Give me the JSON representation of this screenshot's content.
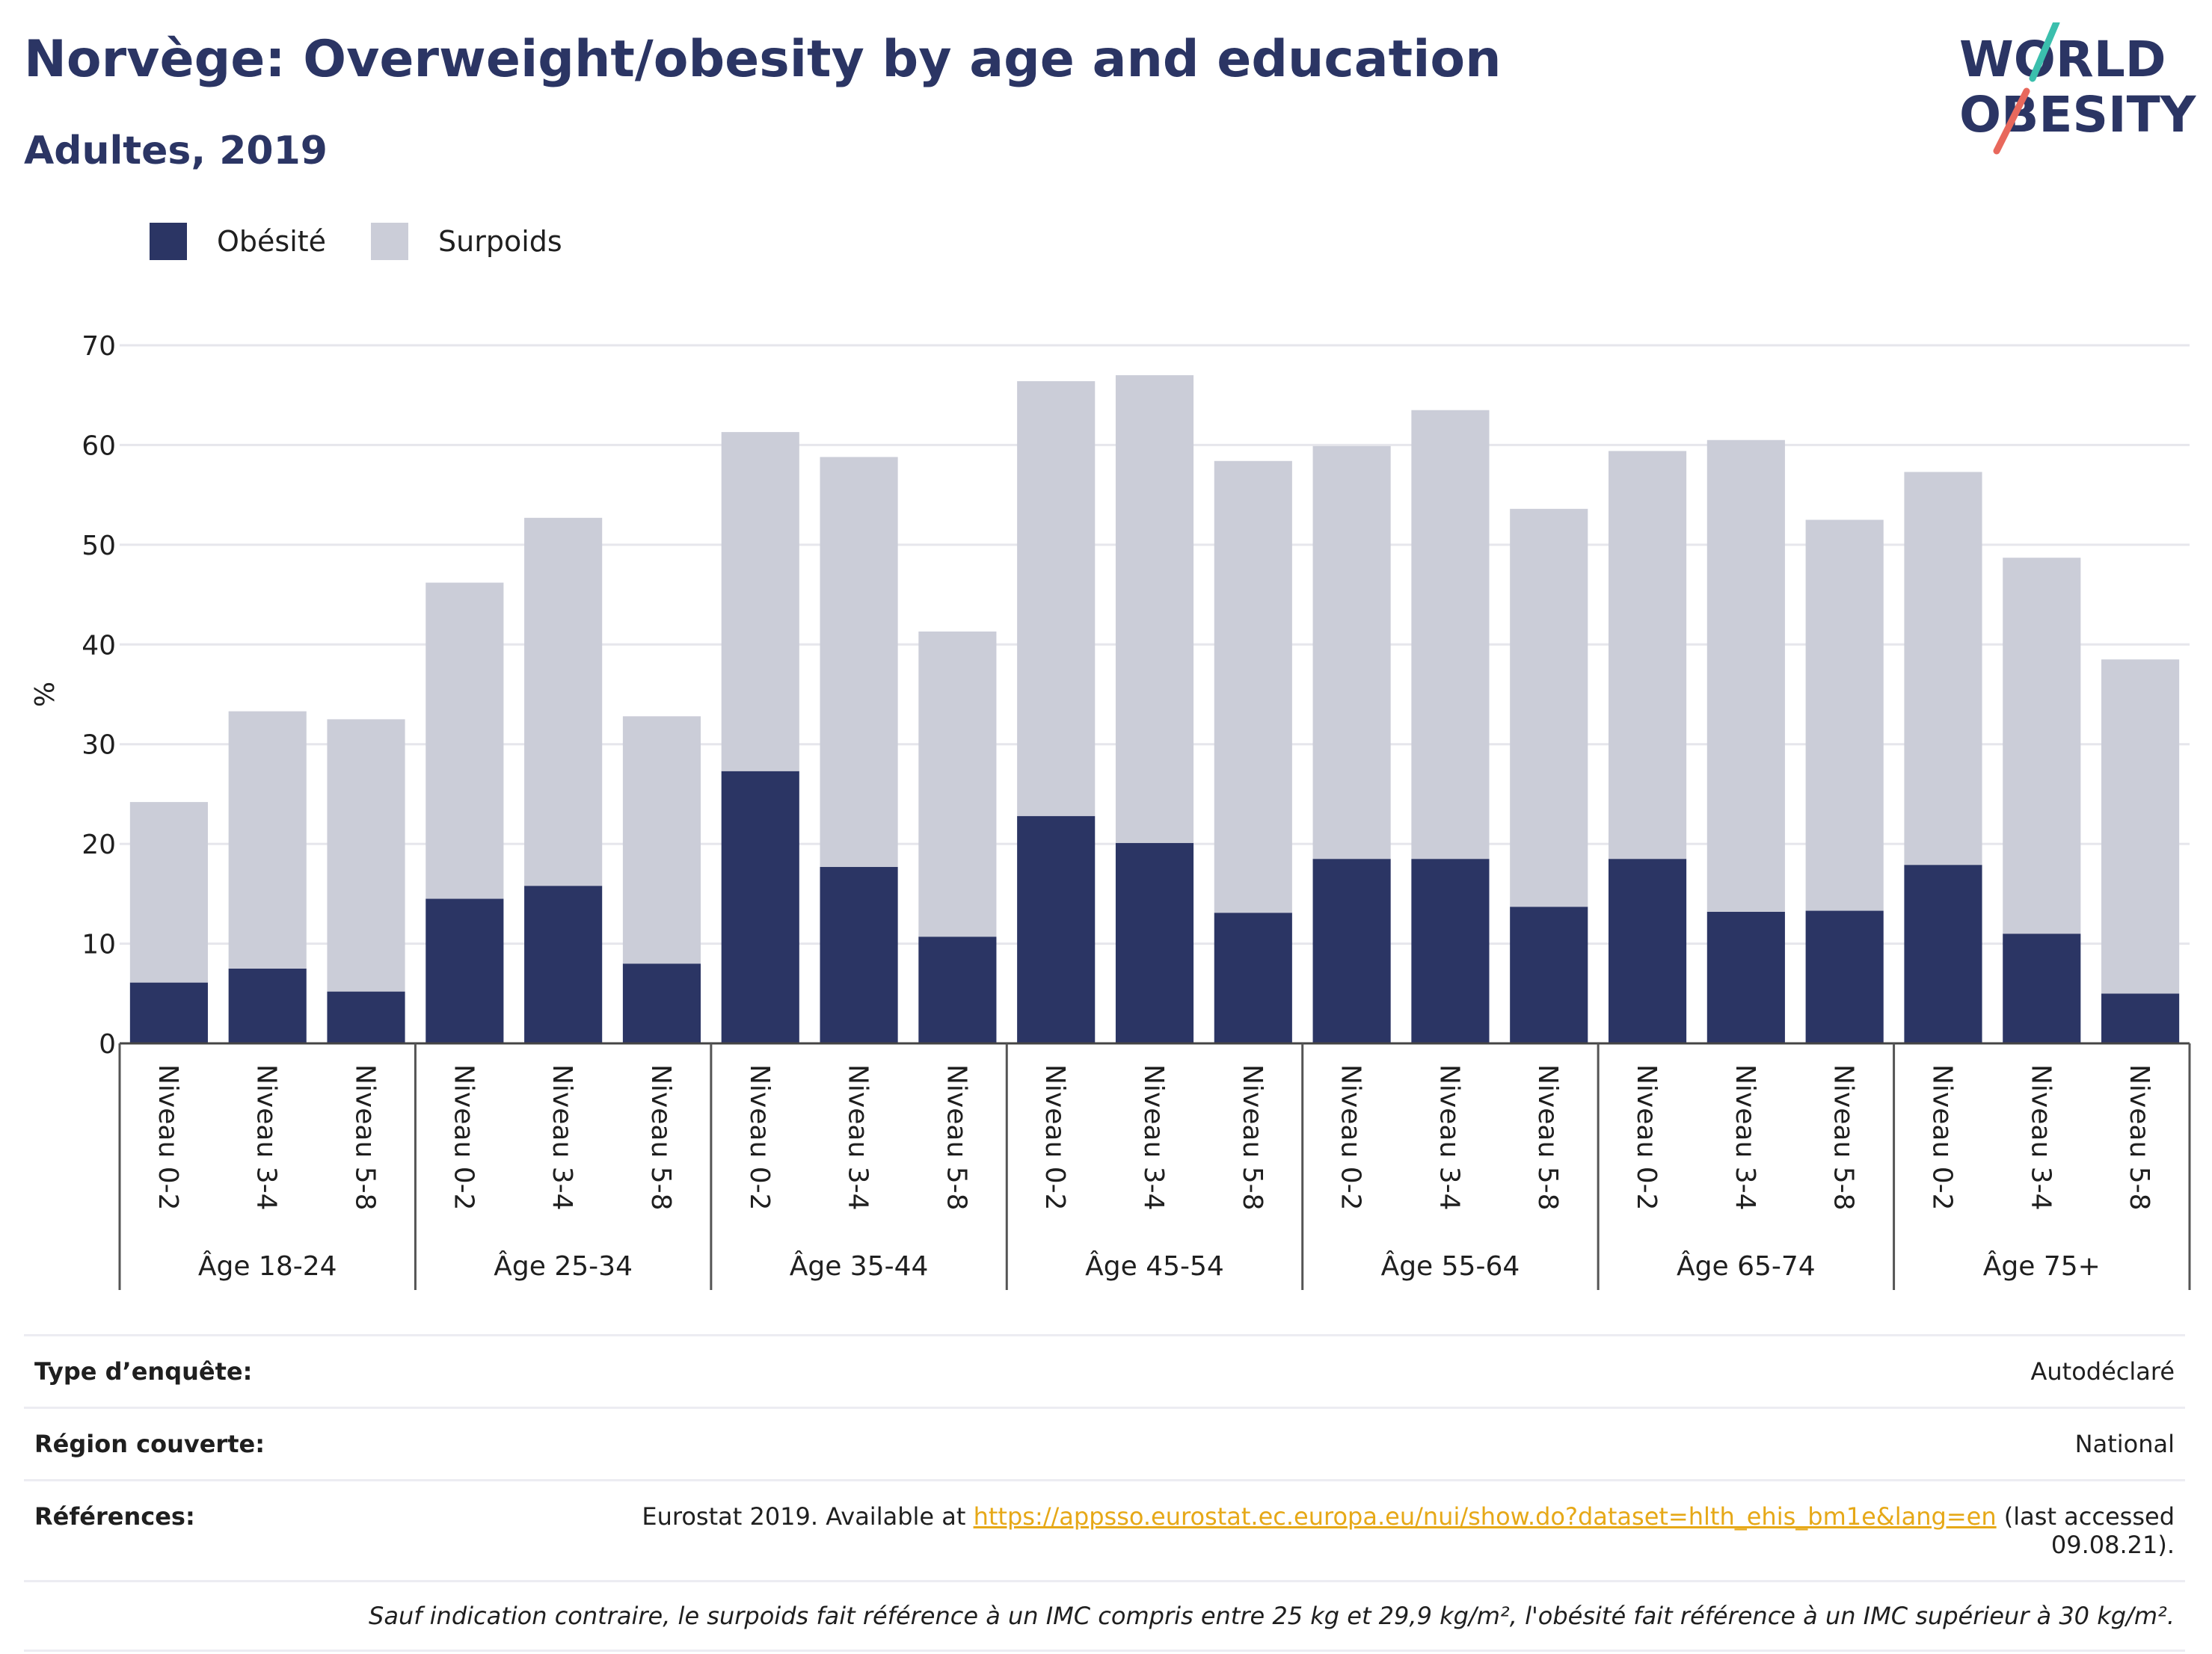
{
  "title": "Norvège: Overweight/obesity by age and education",
  "subtitle": "Adultes, 2019",
  "logo": {
    "line1": "WORLD",
    "line2": "OBESITY"
  },
  "colors": {
    "obesity": "#2b3564",
    "overweight": "#cbcdd8",
    "title": "#2b3564",
    "link": "#e6a817",
    "logo_teal": "#3bbfad",
    "logo_red": "#e8685c"
  },
  "legend": [
    {
      "label": "Obésité",
      "color": "#2b3564"
    },
    {
      "label": "Surpoids",
      "color": "#cbcdd8"
    }
  ],
  "chart_data": {
    "type": "bar",
    "stacked": true,
    "ylabel": "%",
    "ylim": [
      0,
      70
    ],
    "yticks": [
      0,
      10,
      20,
      30,
      40,
      50,
      60,
      70
    ],
    "groups": [
      "Âge 18-24",
      "Âge 25-34",
      "Âge 35-44",
      "Âge 45-54",
      "Âge 55-64",
      "Âge 65-74",
      "Âge 75+"
    ],
    "levels": [
      "Niveau 0-2",
      "Niveau 3-4",
      "Niveau 5-8"
    ],
    "series": [
      {
        "name": "Obésité",
        "color": "#2b3564",
        "values": [
          6.1,
          7.5,
          5.2,
          14.5,
          15.8,
          8.0,
          27.3,
          17.7,
          10.7,
          22.8,
          20.1,
          13.1,
          18.5,
          18.5,
          13.7,
          18.5,
          13.2,
          13.3,
          17.9,
          11.0,
          5.0
        ]
      },
      {
        "name": "Surpoids",
        "color": "#cbcdd8",
        "values": [
          18.1,
          25.8,
          27.3,
          31.7,
          36.9,
          24.8,
          34.0,
          41.1,
          30.6,
          43.6,
          46.9,
          45.3,
          41.4,
          45.0,
          39.9,
          40.9,
          47.3,
          39.2,
          39.4,
          37.7,
          33.5
        ]
      }
    ],
    "totals": [
      24.2,
      33.3,
      32.5,
      46.2,
      52.7,
      32.8,
      61.3,
      58.8,
      41.3,
      66.4,
      67.0,
      58.4,
      59.9,
      63.5,
      53.6,
      59.4,
      60.5,
      52.5,
      57.3,
      48.7,
      38.5
    ],
    "grid": true,
    "legend_position": "top-left"
  },
  "info": {
    "survey_label": "Type d’enquête:",
    "survey_value": "Autodéclaré",
    "region_label": "Région couverte:",
    "region_value": "National",
    "refs_label": "Références:",
    "refs_prefix": "Eurostat 2019. Available at ",
    "refs_link": "https://appsso.eurostat.ec.europa.eu/nui/show.do?dataset=hlth_ehis_bm1e&lang=en",
    "refs_suffix": " (last accessed 09.08.21).",
    "note": "Sauf indication contraire, le surpoids fait référence à un IMC compris entre 25 kg et 29,9 kg/m², l'obésité fait référence à un IMC supérieur à 30 kg/m²."
  }
}
